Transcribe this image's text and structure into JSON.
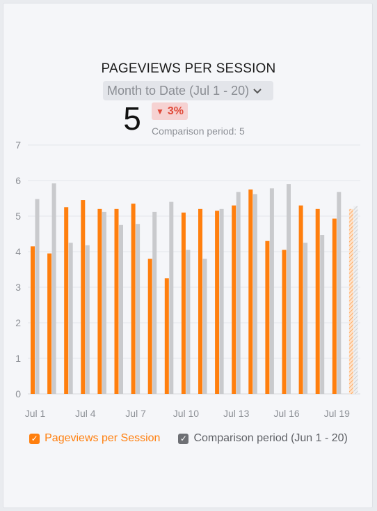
{
  "widget": {
    "title": "PAGEVIEWS PER SESSION",
    "period_label": "Month to Date (Jul 1 - 20)",
    "value": "5",
    "delta": "3%",
    "delta_direction": "down",
    "comparison_text": "Comparison period: 5"
  },
  "colors": {
    "primary": "#ff7f0e",
    "comparison": "#c9cacd",
    "delta_bg": "#f6d2d2",
    "delta_text": "#e04a3a"
  },
  "icons": {
    "period_dropdown": "chevron-down-icon",
    "delta_arrow": "triangle-down-icon",
    "legend_check": "checkbox-checked-icon"
  },
  "chart_data": {
    "type": "bar",
    "categories": [
      "Jul 1",
      "Jul 2",
      "Jul 3",
      "Jul 4",
      "Jul 5",
      "Jul 6",
      "Jul 7",
      "Jul 8",
      "Jul 9",
      "Jul 10",
      "Jul 11",
      "Jul 12",
      "Jul 13",
      "Jul 14",
      "Jul 15",
      "Jul 16",
      "Jul 17",
      "Jul 18",
      "Jul 19",
      "Jul 20"
    ],
    "tick_labels": [
      "Jul 1",
      "Jul 4",
      "Jul 7",
      "Jul 10",
      "Jul 13",
      "Jul 16",
      "Jul 19"
    ],
    "tick_indices": [
      0,
      3,
      6,
      9,
      12,
      15,
      18
    ],
    "series": [
      {
        "name": "Pageviews per Session",
        "values": [
          4.15,
          3.95,
          5.25,
          5.45,
          5.2,
          5.2,
          5.35,
          3.8,
          3.25,
          5.1,
          5.2,
          5.15,
          5.3,
          5.75,
          4.3,
          4.05,
          5.3,
          5.2,
          4.93,
          5.2
        ],
        "partial_last": true
      },
      {
        "name": "Comparison period (Jun 1 - 20)",
        "values": [
          5.48,
          5.92,
          4.25,
          4.18,
          5.12,
          4.75,
          4.78,
          5.12,
          5.4,
          4.05,
          3.8,
          5.2,
          5.68,
          5.62,
          5.78,
          5.9,
          4.25,
          4.47,
          5.68,
          5.28
        ],
        "partial_last": true
      }
    ],
    "ylim": [
      0,
      7
    ],
    "yticks": [
      0,
      1,
      2,
      3,
      4,
      5,
      6,
      7
    ],
    "grid": true,
    "legend_position": "bottom"
  },
  "legend": {
    "primary_label": "Pageviews per Session",
    "comparison_label": "Comparison period (Jun 1 - 20)"
  }
}
